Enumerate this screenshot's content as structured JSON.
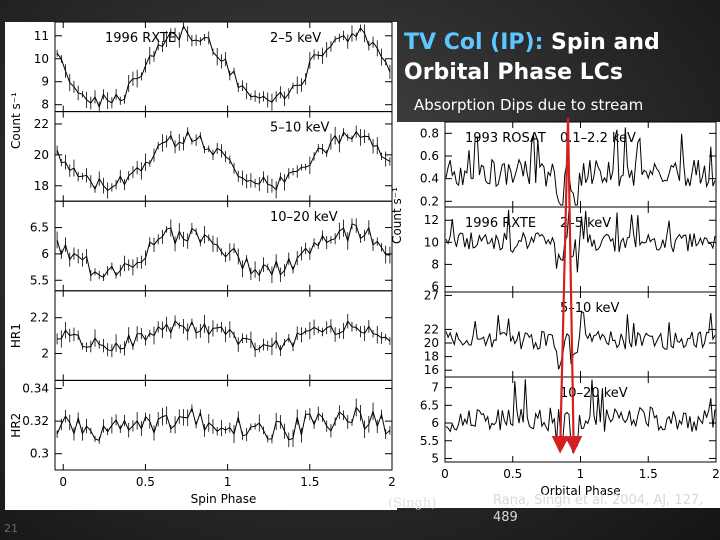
{
  "slide": {
    "title_highlight": "TV Col (IP):",
    "title_rest": " Spin and Orbital Phase LCs",
    "callout": "Absorption Dips due to stream",
    "credit": "(Singh)",
    "citation": "Rana, Singh et al. 2004, AJ, 127, 489",
    "slide_number": "21"
  },
  "colors": {
    "accent": "#5cc8ff",
    "arrow": "#d42020",
    "panel_bg": "#ffffff",
    "trace": "#000000"
  },
  "chart_data": [
    {
      "type": "line",
      "title": "",
      "xlabel": "Spin Phase",
      "ylabel": "Count s⁻¹",
      "xlim": [
        -0.05,
        2.0
      ],
      "x_ticks": [
        0,
        0.5,
        1,
        1.5,
        2
      ],
      "x_tick_labels": [
        "0",
        "0.5",
        "1",
        "1.5",
        "2"
      ],
      "panels": [
        {
          "label": "1996 RXTE",
          "energy": "2–5 keV",
          "ylim": [
            7.7,
            11.6
          ],
          "y_ticks": [
            8,
            9,
            10,
            11
          ],
          "y_tick_labels": [
            "8",
            "9",
            "10",
            "11"
          ],
          "mean": 9.6,
          "amp": 1.5,
          "noise": 0.35
        },
        {
          "label": "",
          "energy": "5–10 keV",
          "ylim": [
            17.0,
            22.8
          ],
          "y_ticks": [
            18,
            20,
            22
          ],
          "y_tick_labels": [
            "18",
            "20",
            "22"
          ],
          "mean": 19.6,
          "amp": 1.5,
          "noise": 0.45
        },
        {
          "label": "",
          "energy": "10–20 keV",
          "ylim": [
            5.3,
            7.0
          ],
          "y_ticks": [
            5.5,
            6,
            6.5
          ],
          "y_tick_labels": [
            "5.5",
            "6",
            "6.5"
          ],
          "mean": 6.05,
          "amp": 0.35,
          "noise": 0.18
        },
        {
          "label": "",
          "energy": "",
          "side_label": "HR1",
          "ylim": [
            1.85,
            2.35
          ],
          "y_ticks": [
            2,
            2.2
          ],
          "y_tick_labels": [
            "2",
            "2.2"
          ],
          "mean": 2.1,
          "amp": 0.05,
          "noise": 0.04
        },
        {
          "label": "",
          "energy": "",
          "side_label": "HR2",
          "ylim": [
            0.29,
            0.345
          ],
          "y_ticks": [
            0.3,
            0.32,
            0.34
          ],
          "y_tick_labels": [
            "0.3",
            "0.32",
            "0.34"
          ],
          "mean": 0.318,
          "amp": 0.004,
          "noise": 0.007
        }
      ]
    },
    {
      "type": "line",
      "title": "",
      "xlabel": "Orbital Phase",
      "ylabel": "Count s⁻¹",
      "xlim": [
        0,
        2.0
      ],
      "x_ticks": [
        0,
        0.5,
        1,
        1.5,
        2
      ],
      "x_tick_labels": [
        "0",
        "0.5",
        "1",
        "1.5",
        "2"
      ],
      "panels": [
        {
          "label": "1993 ROSAT",
          "energy": "0.1–2.2 keV",
          "ylim": [
            0.15,
            0.9
          ],
          "y_ticks": [
            0.2,
            0.4,
            0.6,
            0.8
          ],
          "y_tick_labels": [
            "0.2",
            "0.4",
            "0.6",
            "0.8"
          ],
          "mean": 0.45,
          "noise": 0.12
        },
        {
          "label": "1996 RXTE",
          "energy": "2–5 keV",
          "ylim": [
            5.5,
            13.2
          ],
          "y_ticks": [
            6,
            8,
            10,
            12
          ],
          "y_tick_labels": [
            "6",
            "8",
            "10",
            "12"
          ],
          "mean": 10.0,
          "noise": 0.9
        },
        {
          "label": "",
          "energy": "5–10 keV",
          "ylim": [
            15.0,
            27.5
          ],
          "y_ticks": [
            16,
            18,
            20,
            22,
            27
          ],
          "y_tick_labels": [
            "16",
            "18",
            "20",
            "22",
            "27"
          ],
          "mean": 20.5,
          "noise": 1.4
        },
        {
          "label": "",
          "energy": "10–20 keV",
          "ylim": [
            4.9,
            7.3
          ],
          "y_ticks": [
            5,
            5.5,
            6,
            6.5,
            7
          ],
          "y_tick_labels": [
            "5",
            "5.5",
            "6",
            "6.5",
            "7"
          ],
          "mean": 6.1,
          "noise": 0.35
        }
      ],
      "dip_phases": [
        0.85,
        0.95
      ],
      "annotation": "Absorption Dips due to stream"
    }
  ]
}
